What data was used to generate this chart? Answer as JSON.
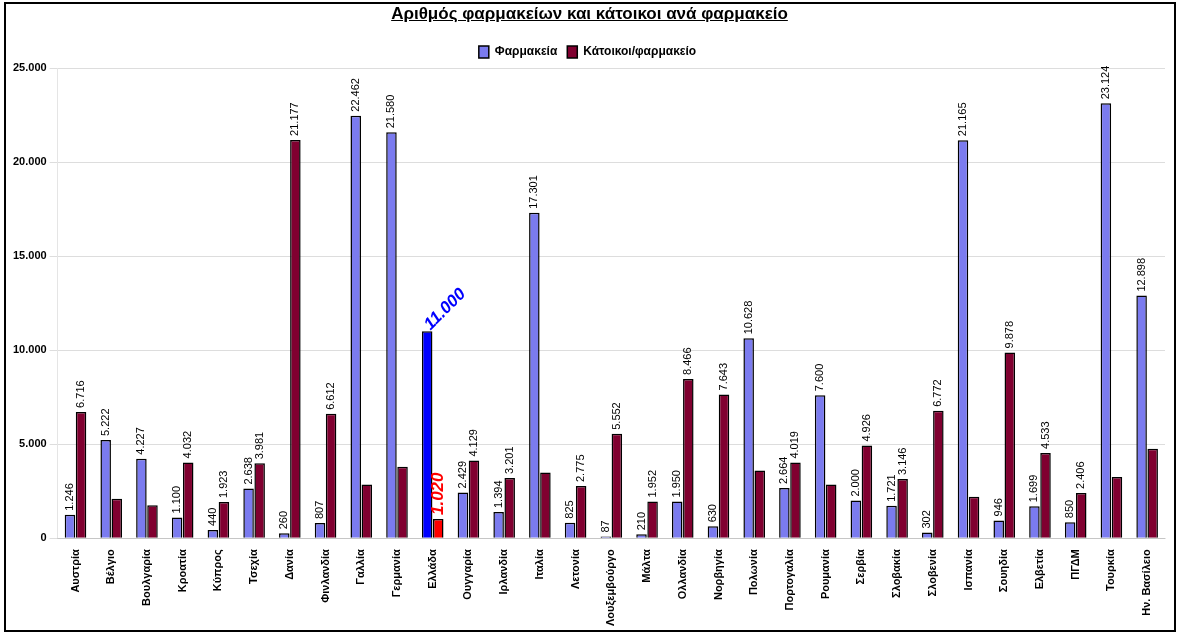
{
  "chart_data": {
    "type": "bar",
    "title": "Αριθμός φαρμακείων και κάτοικοι ανά φαρμακείο",
    "categories": [
      "Αυστρία",
      "Βέλγιο",
      "Βουλγαρία",
      "Κροατία",
      "Κύπρος",
      "Τσεχία",
      "Δανία",
      "Φινλανδία",
      "Γαλλία",
      "Γερμανία",
      "Ελλάδα",
      "Ουγγαρία",
      "Ιρλανδία",
      "Ιταλία",
      "Λετονία",
      "Λουξεμβούργο",
      "Μάλτα",
      "Ολλανδία",
      "Νορβηγία",
      "Πολωνία",
      "Πορτογαλία",
      "Ρουμανία",
      "Σερβία",
      "Σλοβακία",
      "Σλοβενία",
      "Ισπανία",
      "Σουηδία",
      "Ελβετία",
      "ΠΓΔΜ",
      "Τουρκία",
      "Ην. Βασίλειο"
    ],
    "series": [
      {
        "name": "Φαρμακεία",
        "color": "#7b7bef",
        "colors": [
          "#7b7bef",
          "#7b7bef",
          "#7b7bef",
          "#7b7bef",
          "#7b7bef",
          "#7b7bef",
          "#7b7bef",
          "#7b7bef",
          "#7b7bef",
          "#7b7bef",
          "#0000ff",
          "#7b7bef",
          "#7b7bef",
          "#7b7bef",
          "#7b7bef",
          "#7b7bef",
          "#7b7bef",
          "#7b7bef",
          "#7b7bef",
          "#7b7bef",
          "#7b7bef",
          "#7b7bef",
          "#7b7bef",
          "#7b7bef",
          "#7b7bef",
          "#7b7bef",
          "#7b7bef",
          "#7b7bef",
          "#7b7bef",
          "#7b7bef",
          "#7b7bef"
        ],
        "values": [
          1246,
          5222,
          4227,
          1100,
          440,
          2638,
          260,
          807,
          22462,
          21580,
          11000,
          2429,
          1394,
          17301,
          825,
          87,
          210,
          1950,
          630,
          10628,
          2664,
          7600,
          2000,
          1721,
          302,
          21165,
          946,
          1699,
          850,
          23124,
          12898
        ],
        "value_labels": [
          "1.246",
          "5.222",
          "4.227",
          "1.100",
          "440",
          "2.638",
          "260",
          "807",
          "22.462",
          "21.580",
          "11.000",
          "2.429",
          "1.394",
          "17.301",
          "825",
          "87",
          "210",
          "1.950",
          "630",
          "10.628",
          "2.664",
          "7.600",
          "2.000",
          "1.721",
          "302",
          "21.165",
          "946",
          "1.699",
          "850",
          "23.124",
          "12.898"
        ]
      },
      {
        "name": "Κάτοικοι/φαρμακείο",
        "color": "#800030",
        "colors": [
          "#800030",
          "#800030",
          "#800030",
          "#800030",
          "#800030",
          "#800030",
          "#800030",
          "#800030",
          "#800030",
          "#800030",
          "#ff0000",
          "#800030",
          "#800030",
          "#800030",
          "#800030",
          "#800030",
          "#800030",
          "#800030",
          "#800030",
          "#800030",
          "#800030",
          "#800030",
          "#800030",
          "#800030",
          "#800030",
          "#800030",
          "#800030",
          "#800030",
          "#800030",
          "#800030",
          "#800030"
        ],
        "values": [
          6716,
          2100,
          1750,
          4032,
          1923,
          3981,
          21177,
          6612,
          2850,
          3800,
          1020,
          4129,
          3201,
          3500,
          2775,
          5552,
          1952,
          8466,
          7643,
          3600,
          4019,
          2850,
          4926,
          3146,
          6772,
          2200,
          9878,
          4533,
          2406,
          3250,
          4750
        ],
        "value_labels": [
          "6.716",
          null,
          null,
          "4.032",
          "1.923",
          "3.981",
          "21.177",
          "6.612",
          null,
          null,
          "1.020",
          "4.129",
          "3.201",
          null,
          "2.775",
          "5.552",
          "1.952",
          "8.466",
          "7.643",
          null,
          "4.019",
          null,
          "4.926",
          "3.146",
          "6.772",
          null,
          "9.878",
          "4.533",
          "2.406",
          null,
          null
        ]
      }
    ],
    "ylim": [
      0,
      25000
    ],
    "yticks": [
      {
        "value": 0,
        "label": "0"
      },
      {
        "value": 5000,
        "label": "5.000"
      },
      {
        "value": 10000,
        "label": "10.000"
      },
      {
        "value": 15000,
        "label": "15.000"
      },
      {
        "value": 20000,
        "label": "20.000"
      },
      {
        "value": 25000,
        "label": "25.000"
      }
    ],
    "grid": "y",
    "legend": "top"
  }
}
